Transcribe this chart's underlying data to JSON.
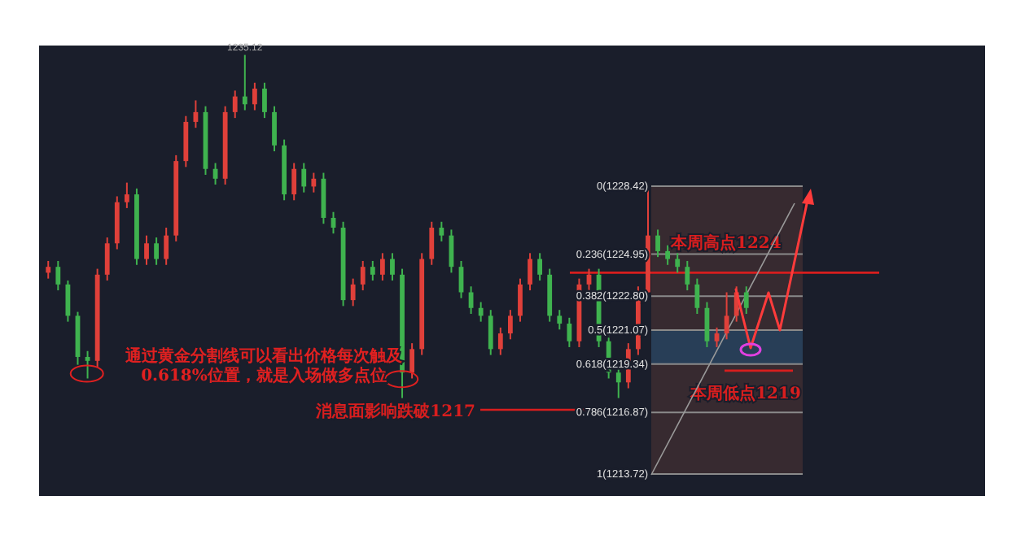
{
  "chart_data": {
    "type": "candlestick",
    "categories": [
      null,
      null,
      null,
      null,
      null,
      null,
      null,
      null,
      null,
      null,
      null,
      null,
      null,
      null,
      null,
      null,
      null,
      null,
      null,
      null,
      null,
      null,
      null,
      null,
      null,
      null,
      null,
      null,
      null,
      null,
      null,
      null,
      null,
      null,
      null,
      null,
      null,
      null,
      null,
      null,
      null,
      null,
      null,
      null,
      null,
      null,
      null,
      null,
      null,
      null,
      null,
      null,
      null,
      null,
      null,
      null,
      null,
      null,
      null,
      null,
      null,
      null,
      null,
      null,
      null,
      null,
      null,
      null,
      null,
      null,
      null,
      null
    ],
    "ohlc": [
      [
        1224.0,
        1224.6,
        1223.7,
        1224.3
      ],
      [
        1224.3,
        1224.6,
        1223.1,
        1223.4
      ],
      [
        1223.4,
        1223.6,
        1221.5,
        1221.8
      ],
      [
        1221.8,
        1222.0,
        1219.3,
        1219.7
      ],
      [
        1219.7,
        1220.0,
        1218.6,
        1219.5
      ],
      [
        1219.5,
        1224.2,
        1219.2,
        1223.9
      ],
      [
        1223.9,
        1225.8,
        1223.6,
        1225.5
      ],
      [
        1225.5,
        1227.9,
        1225.2,
        1227.6
      ],
      [
        1227.6,
        1228.6,
        1227.3,
        1228.0
      ],
      [
        1228.0,
        1228.3,
        1224.4,
        1224.7
      ],
      [
        1224.7,
        1225.9,
        1224.4,
        1225.5
      ],
      [
        1225.5,
        1225.8,
        1224.4,
        1224.7
      ],
      [
        1224.7,
        1226.3,
        1224.4,
        1225.9
      ],
      [
        1225.9,
        1230.0,
        1225.6,
        1229.7
      ],
      [
        1229.7,
        1232.0,
        1229.4,
        1231.7
      ],
      [
        1231.7,
        1232.8,
        1231.4,
        1232.2
      ],
      [
        1232.2,
        1232.5,
        1229.0,
        1229.3
      ],
      [
        1229.3,
        1229.6,
        1228.5,
        1228.8
      ],
      [
        1228.8,
        1232.5,
        1228.5,
        1232.2
      ],
      [
        1232.2,
        1233.3,
        1231.9,
        1233.0
      ],
      [
        1233.0,
        1235.12,
        1232.3,
        1232.6
      ],
      [
        1232.6,
        1233.7,
        1232.3,
        1233.4
      ],
      [
        1233.4,
        1233.7,
        1231.9,
        1232.2
      ],
      [
        1232.2,
        1232.5,
        1230.2,
        1230.5
      ],
      [
        1230.5,
        1230.8,
        1227.7,
        1228.0
      ],
      [
        1228.0,
        1229.6,
        1227.7,
        1229.3
      ],
      [
        1229.3,
        1229.6,
        1228.1,
        1228.4
      ],
      [
        1228.4,
        1229.1,
        1228.1,
        1228.8
      ],
      [
        1228.8,
        1229.1,
        1226.5,
        1226.8
      ],
      [
        1226.8,
        1227.1,
        1226.0,
        1226.3
      ],
      [
        1226.3,
        1226.6,
        1222.3,
        1222.6
      ],
      [
        1222.6,
        1223.7,
        1222.3,
        1223.4
      ],
      [
        1223.4,
        1224.6,
        1223.1,
        1224.3
      ],
      [
        1224.3,
        1224.6,
        1223.6,
        1223.9
      ],
      [
        1223.9,
        1225.0,
        1223.6,
        1224.7
      ],
      [
        1224.7,
        1225.0,
        1223.6,
        1223.9
      ],
      [
        1223.9,
        1224.2,
        1217.6,
        1218.9
      ],
      [
        1218.9,
        1220.4,
        1218.6,
        1220.1
      ],
      [
        1220.1,
        1225.0,
        1219.8,
        1224.7
      ],
      [
        1224.7,
        1226.6,
        1224.4,
        1226.3
      ],
      [
        1226.3,
        1226.6,
        1225.6,
        1225.9
      ],
      [
        1225.9,
        1226.2,
        1224.0,
        1224.3
      ],
      [
        1224.3,
        1224.6,
        1222.7,
        1223.0
      ],
      [
        1223.0,
        1223.3,
        1221.9,
        1222.2
      ],
      [
        1222.2,
        1222.5,
        1221.5,
        1221.8
      ],
      [
        1221.8,
        1222.1,
        1219.8,
        1220.1
      ],
      [
        1220.1,
        1221.2,
        1219.8,
        1220.9
      ],
      [
        1220.9,
        1222.1,
        1220.6,
        1221.8
      ],
      [
        1221.8,
        1223.7,
        1221.5,
        1223.4
      ],
      [
        1223.4,
        1225.0,
        1223.1,
        1224.7
      ],
      [
        1224.7,
        1225.0,
        1223.6,
        1223.9
      ],
      [
        1223.9,
        1224.2,
        1221.5,
        1221.8
      ],
      [
        1221.8,
        1222.1,
        1221.1,
        1221.4
      ],
      [
        1221.4,
        1221.7,
        1220.2,
        1220.5
      ],
      [
        1220.5,
        1223.7,
        1220.2,
        1223.4
      ],
      [
        1223.4,
        1224.2,
        1223.1,
        1223.9
      ],
      [
        1223.9,
        1224.2,
        1220.2,
        1220.5
      ],
      [
        1220.5,
        1220.8,
        1218.6,
        1218.9
      ],
      [
        1218.9,
        1219.2,
        1217.6,
        1218.4
      ],
      [
        1218.4,
        1220.4,
        1218.1,
        1220.1
      ],
      [
        1220.1,
        1223.3,
        1219.8,
        1223.0
      ],
      [
        1223.0,
        1228.4,
        1222.7,
        1225.9
      ],
      [
        1225.9,
        1226.2,
        1224.8,
        1225.1
      ],
      [
        1225.1,
        1225.4,
        1224.4,
        1224.7
      ],
      [
        1224.7,
        1225.0,
        1224.0,
        1224.3
      ],
      [
        1224.3,
        1224.6,
        1223.1,
        1223.4
      ],
      [
        1223.4,
        1223.7,
        1221.9,
        1222.2
      ],
      [
        1222.2,
        1222.5,
        1220.2,
        1220.5
      ],
      [
        1220.5,
        1221.2,
        1220.2,
        1220.9
      ],
      [
        1220.9,
        1223.0,
        1220.6,
        1221.8
      ],
      [
        1221.8,
        1223.3,
        1221.5,
        1223.0
      ],
      [
        1223.0,
        1223.3,
        1221.9,
        1222.2
      ]
    ],
    "ylim": [
      1212.6,
      1235.6
    ],
    "tick_labels": false,
    "colors": [
      "#e0403a",
      "#3fb34f",
      "#3fb34f",
      "#3fb34f",
      "#3fb34f",
      "#e0403a",
      "#e0403a",
      "#e0403a",
      "#e0403a",
      "#3fb34f",
      "#e0403a",
      "#3fb34f",
      "#e0403a",
      "#e0403a",
      "#e0403a",
      "#e0403a",
      "#3fb34f",
      "#3fb34f",
      "#e0403a",
      "#e0403a",
      "#3fb34f",
      "#e0403a",
      "#3fb34f",
      "#3fb34f",
      "#3fb34f",
      "#e0403a",
      "#3fb34f",
      "#e0403a",
      "#3fb34f",
      "#3fb34f",
      "#3fb34f",
      "#e0403a",
      "#e0403a",
      "#3fb34f",
      "#e0403a",
      "#3fb34f",
      "#3fb34f",
      "#e0403a",
      "#e0403a",
      "#e0403a",
      "#3fb34f",
      "#3fb34f",
      "#3fb34f",
      "#3fb34f",
      "#3fb34f",
      "#3fb34f",
      "#e0403a",
      "#e0403a",
      "#e0403a",
      "#e0403a",
      "#3fb34f",
      "#3fb34f",
      "#3fb34f",
      "#3fb34f",
      "#e0403a",
      "#e0403a",
      "#3fb34f",
      "#3fb34f",
      "#3fb34f",
      "#e0403a",
      "#e0403a",
      "#e0403a",
      "#3fb34f",
      "#3fb34f",
      "#3fb34f",
      "#3fb34f",
      "#3fb34f",
      "#3fb34f",
      "#e0403a",
      "#e0403a",
      "#e0403a",
      "#3fb34f"
    ],
    "ref_lines": [
      {
        "axis": "y",
        "value": 1228.42,
        "label": "0(1228.42)",
        "color": "#8a8a8a"
      },
      {
        "axis": "y",
        "value": 1224.95,
        "label": "0.236(1224.95)",
        "color": "#8a8a8a"
      },
      {
        "axis": "y",
        "value": 1222.8,
        "label": "0.382(1222.80)",
        "color": "#8a8a8a"
      },
      {
        "axis": "y",
        "value": 1221.07,
        "label": "0.5(1221.07)",
        "color": "#8a8a8a"
      },
      {
        "axis": "y",
        "value": 1219.34,
        "label": "0.618(1219.34)",
        "color": "#8a8a8a"
      },
      {
        "axis": "y",
        "value": 1216.87,
        "label": "0.786(1216.87)",
        "color": "#8a8a8a"
      },
      {
        "axis": "y",
        "value": 1213.72,
        "label": "1(1213.72)",
        "color": "#8a8a8a"
      },
      {
        "axis": "y",
        "value": 1224,
        "label": "本周高点1224",
        "color": "#d81e1e"
      },
      {
        "axis": "y",
        "value": 1217,
        "label": "消息面影响跌破1217",
        "color": "#d81e1e"
      },
      {
        "axis": "y",
        "value": 1219,
        "label": "本周低点1219",
        "color": "#d81e1e"
      }
    ],
    "bands": [
      {
        "axis": "y",
        "from": 1213.72,
        "to": 1228.42,
        "color": "#3b2b31"
      },
      {
        "axis": "y",
        "from": 1219.34,
        "to": 1221.07,
        "color": "#27405c"
      }
    ],
    "annotations": [
      {
        "text": "1235.12",
        "y": 1235.12
      },
      "通过黄金分割线可以看出价格每次触及\n0.618%位置，就是入场做多点位"
    ]
  }
}
